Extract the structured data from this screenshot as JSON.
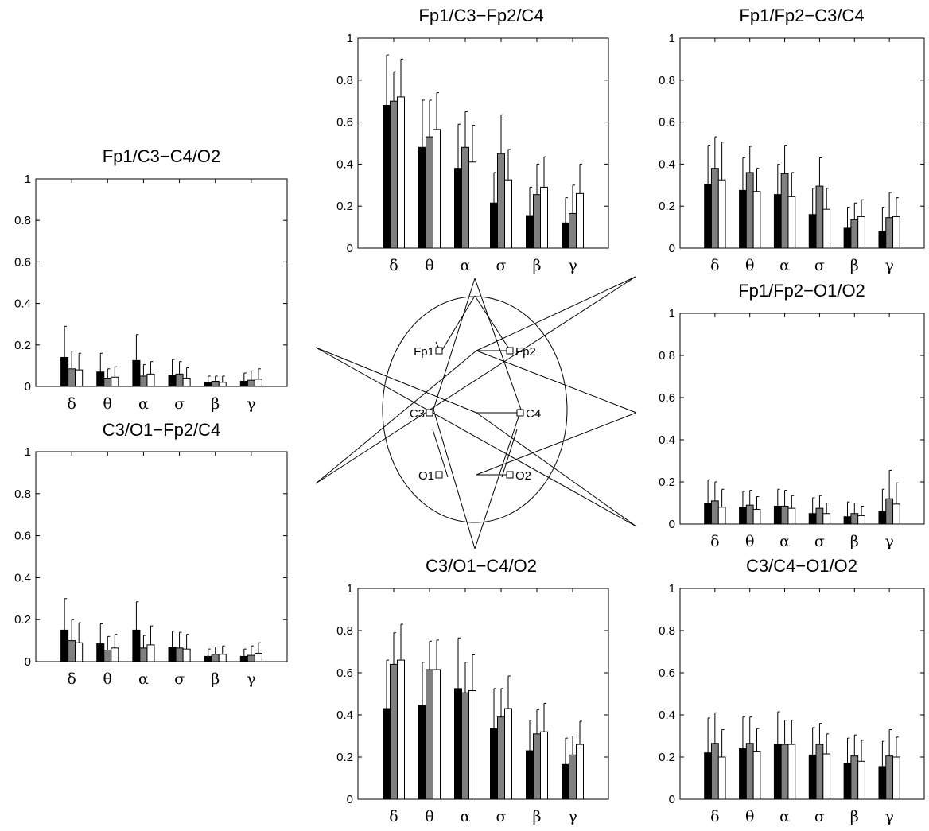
{
  "colors": {
    "series_fills": [
      "#000000",
      "#808080",
      "#ffffff"
    ],
    "axis": "#000000"
  },
  "chart_data": [
    {
      "type": "bar",
      "title": "Fp1/C3−C4/O2",
      "categories": [
        "δ",
        "θ",
        "α",
        "σ",
        "β",
        "γ"
      ],
      "series": [
        {
          "values": [
            0.14,
            0.07,
            0.125,
            0.055,
            0.02,
            0.025
          ],
          "errors": [
            0.15,
            0.09,
            0.125,
            0.075,
            0.03,
            0.04
          ]
        },
        {
          "values": [
            0.085,
            0.04,
            0.05,
            0.06,
            0.025,
            0.03
          ],
          "errors": [
            0.085,
            0.045,
            0.055,
            0.06,
            0.025,
            0.045
          ]
        },
        {
          "values": [
            0.08,
            0.045,
            0.06,
            0.04,
            0.02,
            0.035
          ],
          "errors": [
            0.08,
            0.05,
            0.06,
            0.05,
            0.03,
            0.05
          ]
        }
      ],
      "ylim": [
        0,
        1
      ],
      "yticks": [
        "0",
        "0.2",
        "0.4",
        "0.6",
        "0.8",
        "1"
      ],
      "grid": false
    },
    {
      "type": "bar",
      "title": "C3/O1−Fp2/C4",
      "categories": [
        "δ",
        "θ",
        "α",
        "σ",
        "β",
        "γ"
      ],
      "series": [
        {
          "values": [
            0.15,
            0.085,
            0.15,
            0.07,
            0.025,
            0.025
          ],
          "errors": [
            0.15,
            0.095,
            0.135,
            0.075,
            0.035,
            0.035
          ]
        },
        {
          "values": [
            0.1,
            0.055,
            0.065,
            0.065,
            0.035,
            0.03
          ],
          "errors": [
            0.1,
            0.065,
            0.06,
            0.075,
            0.035,
            0.045
          ]
        },
        {
          "values": [
            0.09,
            0.065,
            0.08,
            0.06,
            0.035,
            0.04
          ],
          "errors": [
            0.095,
            0.065,
            0.09,
            0.07,
            0.04,
            0.05
          ]
        }
      ],
      "ylim": [
        0,
        1
      ],
      "yticks": [
        "0",
        "0.2",
        "0.4",
        "0.6",
        "0.8",
        "1"
      ],
      "grid": false
    },
    {
      "type": "bar",
      "title": "Fp1/C3−Fp2/C4",
      "categories": [
        "δ",
        "θ",
        "α",
        "σ",
        "β",
        "γ"
      ],
      "series": [
        {
          "values": [
            0.68,
            0.48,
            0.38,
            0.215,
            0.155,
            0.12
          ],
          "errors": [
            0.24,
            0.225,
            0.21,
            0.145,
            0.135,
            0.12
          ]
        },
        {
          "values": [
            0.7,
            0.53,
            0.48,
            0.45,
            0.255,
            0.165
          ],
          "errors": [
            0.14,
            0.175,
            0.17,
            0.185,
            0.145,
            0.135
          ]
        },
        {
          "values": [
            0.72,
            0.565,
            0.41,
            0.325,
            0.29,
            0.26
          ],
          "errors": [
            0.18,
            0.175,
            0.175,
            0.145,
            0.145,
            0.14
          ]
        }
      ],
      "ylim": [
        0,
        1
      ],
      "yticks": [
        "0",
        "0.2",
        "0.4",
        "0.6",
        "0.8",
        "1"
      ],
      "grid": false
    },
    {
      "type": "bar",
      "title": "C3/O1−C4/O2",
      "categories": [
        "δ",
        "θ",
        "α",
        "σ",
        "β",
        "γ"
      ],
      "series": [
        {
          "values": [
            0.43,
            0.445,
            0.525,
            0.335,
            0.23,
            0.165
          ],
          "errors": [
            0.23,
            0.205,
            0.24,
            0.19,
            0.145,
            0.125
          ]
        },
        {
          "values": [
            0.64,
            0.615,
            0.505,
            0.39,
            0.31,
            0.21
          ],
          "errors": [
            0.15,
            0.135,
            0.145,
            0.135,
            0.115,
            0.09
          ]
        },
        {
          "values": [
            0.66,
            0.615,
            0.515,
            0.43,
            0.32,
            0.26
          ],
          "errors": [
            0.17,
            0.14,
            0.17,
            0.155,
            0.135,
            0.11
          ]
        }
      ],
      "ylim": [
        0,
        1
      ],
      "yticks": [
        "0",
        "0.2",
        "0.4",
        "0.6",
        "0.8",
        "1"
      ],
      "grid": false
    },
    {
      "type": "bar",
      "title": "Fp1/Fp2−C3/C4",
      "categories": [
        "δ",
        "θ",
        "α",
        "σ",
        "β",
        "γ"
      ],
      "series": [
        {
          "values": [
            0.305,
            0.275,
            0.255,
            0.16,
            0.095,
            0.08
          ],
          "errors": [
            0.185,
            0.155,
            0.145,
            0.125,
            0.1,
            0.115
          ]
        },
        {
          "values": [
            0.38,
            0.36,
            0.355,
            0.295,
            0.135,
            0.145
          ],
          "errors": [
            0.15,
            0.125,
            0.135,
            0.135,
            0.08,
            0.12
          ]
        },
        {
          "values": [
            0.325,
            0.27,
            0.245,
            0.185,
            0.15,
            0.15
          ],
          "errors": [
            0.18,
            0.11,
            0.115,
            0.1,
            0.08,
            0.09
          ]
        }
      ],
      "ylim": [
        0,
        1
      ],
      "yticks": [
        "0",
        "0.2",
        "0.4",
        "0.6",
        "0.8",
        "1"
      ],
      "grid": false
    },
    {
      "type": "bar",
      "title": "Fp1/Fp2−O1/O2",
      "categories": [
        "δ",
        "θ",
        "α",
        "σ",
        "β",
        "γ"
      ],
      "series": [
        {
          "values": [
            0.1,
            0.08,
            0.085,
            0.05,
            0.035,
            0.06
          ],
          "errors": [
            0.11,
            0.075,
            0.08,
            0.075,
            0.07,
            0.105
          ]
        },
        {
          "values": [
            0.11,
            0.09,
            0.085,
            0.075,
            0.05,
            0.12
          ],
          "errors": [
            0.09,
            0.07,
            0.075,
            0.06,
            0.05,
            0.135
          ]
        },
        {
          "values": [
            0.08,
            0.07,
            0.075,
            0.05,
            0.04,
            0.095
          ],
          "errors": [
            0.085,
            0.06,
            0.06,
            0.05,
            0.045,
            0.1
          ]
        }
      ],
      "ylim": [
        0,
        1
      ],
      "yticks": [
        "0",
        "0.2",
        "0.4",
        "0.6",
        "0.8",
        "1"
      ],
      "grid": false
    },
    {
      "type": "bar",
      "title": "C3/C4−O1/O2",
      "categories": [
        "δ",
        "θ",
        "α",
        "σ",
        "β",
        "γ"
      ],
      "series": [
        {
          "values": [
            0.22,
            0.24,
            0.26,
            0.21,
            0.17,
            0.155
          ],
          "errors": [
            0.165,
            0.15,
            0.155,
            0.13,
            0.12,
            0.12
          ]
        },
        {
          "values": [
            0.265,
            0.265,
            0.26,
            0.26,
            0.205,
            0.205
          ],
          "errors": [
            0.145,
            0.125,
            0.115,
            0.1,
            0.1,
            0.125
          ]
        },
        {
          "values": [
            0.2,
            0.225,
            0.26,
            0.215,
            0.18,
            0.2
          ],
          "errors": [
            0.13,
            0.11,
            0.115,
            0.095,
            0.1,
            0.095
          ]
        }
      ],
      "ylim": [
        0,
        1
      ],
      "yticks": [
        "0",
        "0.2",
        "0.4",
        "0.6",
        "0.8",
        "1"
      ],
      "grid": false
    }
  ],
  "montage": {
    "electrodes": [
      {
        "label": "Fp1",
        "side": "left"
      },
      {
        "label": "Fp2",
        "side": "right"
      },
      {
        "label": "C3",
        "side": "left"
      },
      {
        "label": "C4",
        "side": "right"
      },
      {
        "label": "O1",
        "side": "left"
      },
      {
        "label": "O2",
        "side": "right"
      }
    ]
  }
}
